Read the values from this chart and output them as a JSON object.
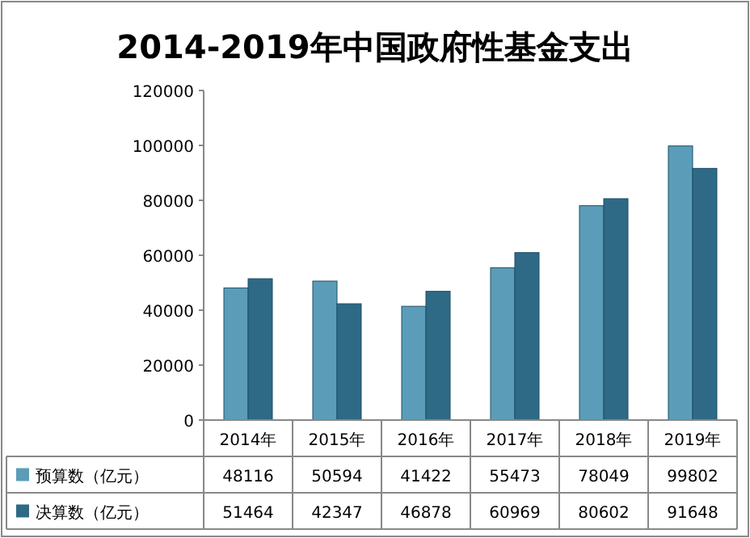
{
  "chart_data": {
    "type": "bar",
    "title": "2014-2019年中国政府性基金支出",
    "categories": [
      "2014年",
      "2015年",
      "2016年",
      "2017年",
      "2018年",
      "2019年"
    ],
    "series": [
      {
        "name": "预算数（亿元）",
        "color": "#5b9db8",
        "values": [
          48116,
          50594,
          41422,
          55473,
          78049,
          99802
        ]
      },
      {
        "name": "决算数（亿元）",
        "color": "#2e6a86",
        "values": [
          51464,
          42347,
          46878,
          60969,
          80602,
          91648
        ]
      }
    ],
    "ylim": [
      0,
      120000
    ],
    "yticks": [
      0,
      20000,
      40000,
      60000,
      80000,
      100000,
      120000
    ],
    "data_labels": true,
    "legend": "bottom"
  }
}
